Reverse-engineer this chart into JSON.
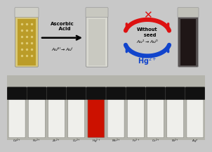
{
  "background_color": "#c8c8c8",
  "top": {
    "vial1_body": "#d4c080",
    "vial1_liquid": "#b89820",
    "vial2_body": "#d8d8d0",
    "vial2_liquid": "#c8c8c0",
    "vial3_body": "#444444",
    "vial3_liquid": "#1a1010",
    "cap_color": "#c0c0b8",
    "arrow_color": "#111111",
    "text_ascorbic": "Ascorbic\n  Acid",
    "text_au": "Au$^{III}$$\\rightarrow$Au$^{I}$",
    "red_color": "#dd1111",
    "blue_color": "#1144cc",
    "text_without": "Without\n  seed",
    "text_au2": "Au$^{1}$$\\rightarrow$Au$^{0}$",
    "text_hg": "Hg$^{2+}$"
  },
  "bottom": {
    "bg": "#b4b4ac",
    "labels": [
      "Cd$^{2+}$",
      "Pb$^{2+}$",
      "Zn$^{2+}$",
      "Cu$^{2+}$",
      "Hg$^{2+}$",
      "Mn$^{2+}$",
      "Fe$^{3+}$",
      "Co$^{2+}$",
      "Ni$^{2+}$",
      "Ag$^{+}$"
    ],
    "vial_fill": [
      "#efefeb",
      "#efefeb",
      "#efefeb",
      "#efefeb",
      "#cc1100",
      "#efefeb",
      "#efefeb",
      "#efefeb",
      "#efefeb",
      "#efefeb"
    ],
    "cap_color": "#111111",
    "body_edge": "#888880"
  }
}
